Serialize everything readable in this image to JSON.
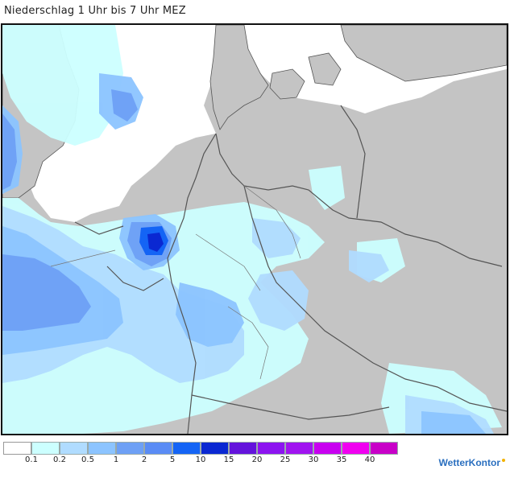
{
  "title": "Niederschlag 1 Uhr bis 7 Uhr MEZ",
  "legend": {
    "colors": [
      "#ffffff",
      "#ccffff",
      "#b0dcff",
      "#8cc4ff",
      "#6ea0f5",
      "#5a8cf5",
      "#1464f5",
      "#0a28d2",
      "#6414dc",
      "#8c14f0",
      "#a014f0",
      "#c800f0",
      "#f000f0",
      "#c800c8"
    ],
    "labels": [
      "0.1",
      "0.2",
      "0.5",
      "1",
      "2",
      "5",
      "10",
      "15",
      "20",
      "25",
      "30",
      "35",
      "40"
    ]
  },
  "brand": "WetterKontor"
}
